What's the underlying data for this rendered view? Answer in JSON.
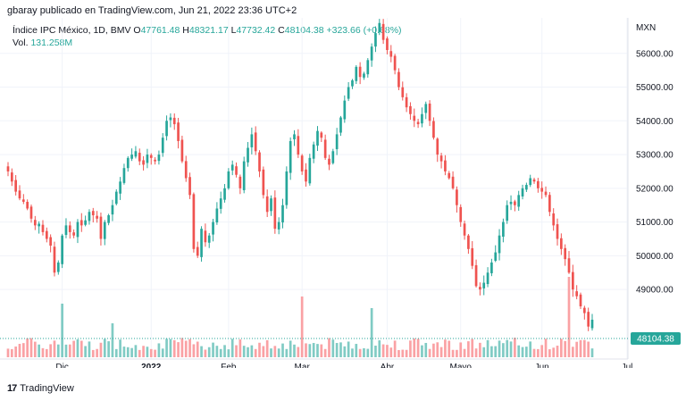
{
  "header": {
    "text": "gbaray publicado en TradingView.com, Jun 21, 2022 23:36 UTC+2"
  },
  "legend": {
    "symbol": "Índice IPC México, 1D, BMV",
    "open_label": "O",
    "open": "47761.48",
    "high_label": "H",
    "high": "48321.17",
    "low_label": "L",
    "low": "47732.42",
    "close_label": "C",
    "close": "48104.38",
    "change": "+323.66 (+0.68%)"
  },
  "volume": {
    "label": "Vol.",
    "value": "131.258M"
  },
  "branding": {
    "logo": "17",
    "name": "TradingView"
  },
  "colors": {
    "up": "#26a69a",
    "down": "#ef5350",
    "vol_up": "#80cbc4",
    "vol_down": "#faa1a4",
    "grid": "#f0f3fa"
  },
  "chart_data": {
    "type": "candlestick",
    "currency": "MXN",
    "ylim": [
      47600,
      57000
    ],
    "y_ticks": [
      "56000.00",
      "55000.00",
      "54000.00",
      "53000.00",
      "52000.00",
      "51000.00",
      "50000.00",
      "49000.00"
    ],
    "x_ticks": [
      {
        "label": "Dic",
        "index": 14,
        "bold": false
      },
      {
        "label": "2022",
        "index": 37,
        "bold": true
      },
      {
        "label": "Feb",
        "index": 57,
        "bold": false
      },
      {
        "label": "Mar",
        "index": 76,
        "bold": false
      },
      {
        "label": "Abr",
        "index": 98,
        "bold": false
      },
      {
        "label": "Mayo",
        "index": 117,
        "bold": false
      },
      {
        "label": "Jun",
        "index": 138,
        "bold": false
      },
      {
        "label": "Jul",
        "index": 160,
        "bold": false
      }
    ],
    "last_price": "48104.38",
    "closes": [
      52500,
      52200,
      51900,
      51700,
      51600,
      51400,
      51100,
      50900,
      50950,
      50700,
      50500,
      50300,
      49500,
      49800,
      50600,
      50900,
      50700,
      50600,
      51000,
      50900,
      51050,
      51300,
      51200,
      51100,
      50500,
      51000,
      51200,
      51500,
      51900,
      52200,
      52600,
      52900,
      53000,
      53100,
      52800,
      52700,
      53000,
      52900,
      52800,
      53000,
      53500,
      54000,
      54100,
      53900,
      53400,
      52800,
      52300,
      51800,
      50200,
      50000,
      50800,
      50400,
      50600,
      51000,
      51400,
      51700,
      52000,
      52500,
      52700,
      52400,
      52000,
      52800,
      53200,
      53600,
      53100,
      52500,
      51800,
      51300,
      51700,
      50800,
      51000,
      51500,
      52500,
      53400,
      53600,
      53000,
      52500,
      52200,
      52900,
      53300,
      53700,
      53500,
      52900,
      52700,
      53100,
      53600,
      54100,
      54600,
      55000,
      55200,
      55600,
      55300,
      55400,
      55800,
      56200,
      56600,
      56900,
      56400,
      56100,
      55900,
      55500,
      55000,
      54700,
      54400,
      54200,
      54000,
      53900,
      54200,
      54500,
      54000,
      53500,
      53000,
      52800,
      52500,
      52300,
      52000,
      51500,
      51000,
      50600,
      50200,
      49700,
      49100,
      49000,
      49200,
      49500,
      49800,
      50100,
      50600,
      51000,
      51500,
      51600,
      51500,
      51800,
      52000,
      52100,
      52300,
      52200,
      52000,
      51900,
      51800,
      51300,
      50900,
      50500,
      50200,
      49900,
      49500,
      49000,
      48800,
      48500,
      48300,
      47900,
      48104
    ]
  }
}
